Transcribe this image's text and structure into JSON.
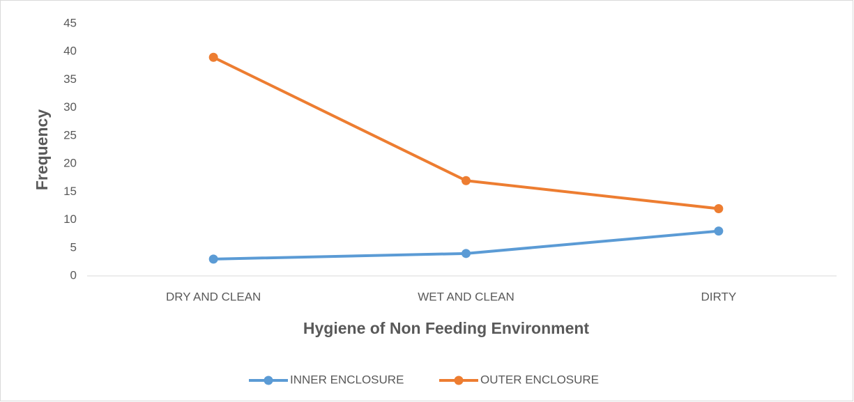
{
  "chart_data": {
    "type": "line",
    "x_label": "Hygiene of Non Feeding Environment",
    "y_label": "Frequency",
    "categories": [
      "DRY AND CLEAN",
      "WET AND CLEAN",
      "DIRTY"
    ],
    "series": [
      {
        "name": "INNER ENCLOSURE",
        "color": "#5b9bd5",
        "values": [
          3,
          4,
          8
        ]
      },
      {
        "name": "OUTER ENCLOSURE",
        "color": "#ed7d31",
        "values": [
          39,
          17,
          12
        ]
      }
    ],
    "ylim": [
      0,
      45
    ],
    "yticks": [
      0,
      5,
      10,
      15,
      20,
      25,
      30,
      35,
      40,
      45
    ],
    "grid": false,
    "legend": "bottom"
  }
}
